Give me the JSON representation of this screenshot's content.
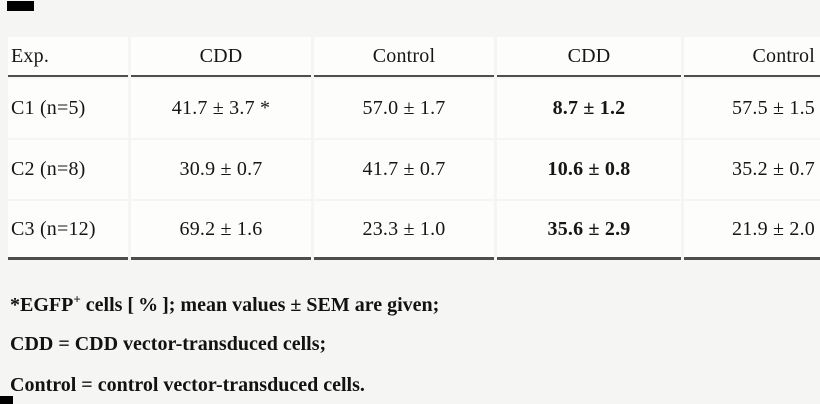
{
  "page": {
    "background_color": "#f5f5f3",
    "cell_color": "#fdfdfc",
    "rule_color": "#4e4e4e",
    "artifact_color": "#000000"
  },
  "table": {
    "columns": [
      "Exp.",
      "CDD",
      "Control",
      "CDD",
      "Control"
    ],
    "bold_column_index": 3,
    "rows": [
      [
        "C1 (n=5)",
        "41.7 ± 3.7 *",
        "57.0 ± 1.7",
        "8.7 ± 1.2",
        "57.5 ± 1.5"
      ],
      [
        "C2 (n=8)",
        "30.9 ± 0.7",
        "41.7 ± 0.7",
        "10.6 ± 0.8",
        "35.2 ± 0.7"
      ],
      [
        "C3 (n=12)",
        "69.2 ± 1.6",
        "23.3 ± 1.0",
        "35.6 ± 2.9",
        "21.9 ± 2.0"
      ]
    ]
  },
  "footnotes": {
    "line1_prefix": "*EGFP",
    "line1_sup": "+",
    "line1_rest": " cells [ % ]; mean values ± SEM are given;",
    "line2": "CDD = CDD vector-transduced cells;",
    "line3": "Control = control vector-transduced cells."
  }
}
